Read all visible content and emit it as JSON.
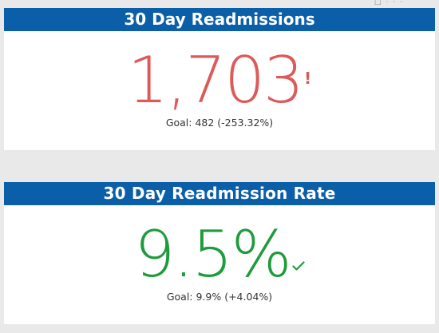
{
  "window_controls": {
    "minimize": "□",
    "more": "···"
  },
  "colors": {
    "header_bg": "#0b5ea8",
    "bad": "#dc5a5a",
    "good": "#1e9b3c"
  },
  "cards": [
    {
      "title": "30 Day Readmissions",
      "value": "1,703",
      "indicator": "!",
      "indicator_icon": "alert-icon",
      "status": "bad",
      "goal_text": "Goal: 482 (-253.32%)"
    },
    {
      "title": "30 Day Readmission Rate",
      "value": "9.5%",
      "indicator_icon": "check-icon",
      "status": "good",
      "goal_text": "Goal: 9.9% (+4.04%)"
    }
  ]
}
